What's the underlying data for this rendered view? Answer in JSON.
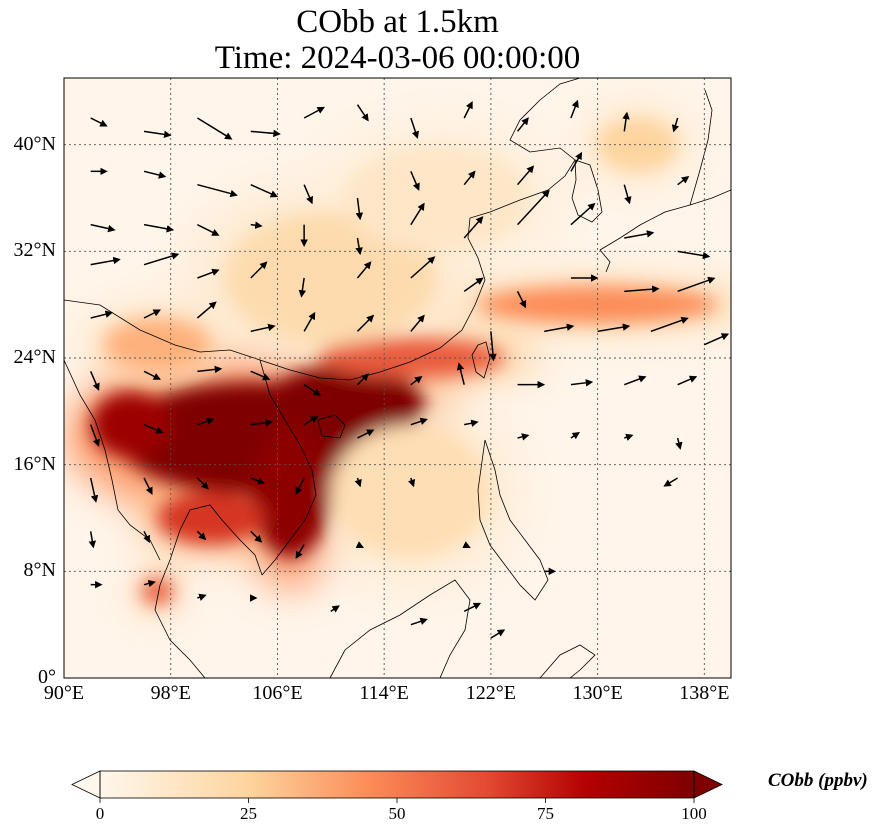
{
  "map": {
    "title_line1": "CObb at 1.5km",
    "title_line2": "Time: 2024-03-06 00:00:00",
    "lon_range": [
      90,
      140
    ],
    "lat_range": [
      0,
      45
    ],
    "lat_ticks": [
      {
        "value": 0,
        "label": "0°"
      },
      {
        "value": 8,
        "label": "8°N"
      },
      {
        "value": 16,
        "label": "16°N"
      },
      {
        "value": 24,
        "label": "24°N"
      },
      {
        "value": 32,
        "label": "32°N"
      },
      {
        "value": 40,
        "label": "40°N"
      }
    ],
    "lon_ticks": [
      {
        "value": 90,
        "label": "90°E"
      },
      {
        "value": 98,
        "label": "98°E"
      },
      {
        "value": 106,
        "label": "106°E"
      },
      {
        "value": 114,
        "label": "114°E"
      },
      {
        "value": 122,
        "label": "122°E"
      },
      {
        "value": 130,
        "label": "130°E"
      },
      {
        "value": 138,
        "label": "138°E"
      }
    ],
    "gridlines": true,
    "colormap": "OrRd",
    "colors": {
      "low": "#fff7ec",
      "mid": "#fdbb84",
      "high": "#7f0000"
    }
  },
  "colorbar": {
    "label": "CObb (ppbv)",
    "min": 0,
    "max": 100,
    "extend": "both",
    "ticks": [
      {
        "value": 0,
        "label": "0"
      },
      {
        "value": 25,
        "label": "25"
      },
      {
        "value": 50,
        "label": "50"
      },
      {
        "value": 75,
        "label": "75"
      },
      {
        "value": 100,
        "label": "100"
      }
    ]
  },
  "plumes": [
    {
      "name": "indochina-core",
      "value": 100,
      "lon": 104,
      "lat": 18,
      "rlon": 10,
      "rlat": 4.2
    },
    {
      "name": "south-china-core",
      "value": 100,
      "lon": 111,
      "lat": 20.5,
      "rlon": 6,
      "rlat": 3
    },
    {
      "name": "vietnam-core",
      "value": 95,
      "lon": 107,
      "lat": 14,
      "rlon": 3,
      "rlat": 5
    },
    {
      "name": "myanmar-patch",
      "value": 90,
      "lon": 95,
      "lat": 19,
      "rlon": 3,
      "rlat": 2.5
    },
    {
      "name": "thailand-band",
      "value": 70,
      "lon": 101,
      "lat": 12,
      "rlon": 4,
      "rlat": 2
    },
    {
      "name": "china-coast-band",
      "value": 60,
      "lon": 116,
      "lat": 24,
      "rlon": 7,
      "rlat": 1.5
    },
    {
      "name": "taiwan-stream",
      "value": 45,
      "lon": 130,
      "lat": 28,
      "rlon": 9,
      "rlat": 1.4
    },
    {
      "name": "yunnan-haze",
      "value": 35,
      "lon": 97,
      "lat": 25,
      "rlon": 4,
      "rlat": 2
    },
    {
      "name": "central-china-haze",
      "value": 20,
      "lon": 110,
      "lat": 30,
      "rlon": 8,
      "rlat": 5
    },
    {
      "name": "northern-haze",
      "value": 12,
      "lon": 118,
      "lat": 36,
      "rlon": 7,
      "rlat": 4
    },
    {
      "name": "scs-haze",
      "value": 18,
      "lon": 116,
      "lat": 14,
      "rlon": 6,
      "rlat": 5
    },
    {
      "name": "malay-patch",
      "value": 60,
      "lon": 97,
      "lat": 6.5,
      "rlon": 1.2,
      "rlat": 1
    },
    {
      "name": "japan-streak",
      "value": 25,
      "lon": 133,
      "lat": 40,
      "rlon": 3,
      "rlat": 2
    }
  ],
  "wind_vectors": [
    {
      "lon": 92,
      "lat": 42,
      "u": 1.2,
      "v": -0.6
    },
    {
      "lon": 96,
      "lat": 41,
      "u": 2.0,
      "v": -0.3
    },
    {
      "lon": 100,
      "lat": 42,
      "u": 2.6,
      "v": -1.6
    },
    {
      "lon": 104,
      "lat": 41,
      "u": 2.2,
      "v": -0.2
    },
    {
      "lon": 108,
      "lat": 42,
      "u": 1.5,
      "v": 0.8
    },
    {
      "lon": 112,
      "lat": 43,
      "u": 0.8,
      "v": -1.2
    },
    {
      "lon": 116,
      "lat": 42,
      "u": 0.5,
      "v": -1.5
    },
    {
      "lon": 120,
      "lat": 42,
      "u": 0.6,
      "v": 1.2
    },
    {
      "lon": 124,
      "lat": 41,
      "u": 0.8,
      "v": 1.0
    },
    {
      "lon": 128,
      "lat": 42,
      "u": 0.5,
      "v": 1.3
    },
    {
      "lon": 132,
      "lat": 41,
      "u": 0.2,
      "v": 1.4
    },
    {
      "lon": 136,
      "lat": 42,
      "u": -0.3,
      "v": -1.0
    },
    {
      "lon": 92,
      "lat": 38,
      "u": 1.2,
      "v": 0.0
    },
    {
      "lon": 96,
      "lat": 38,
      "u": 1.6,
      "v": -0.4
    },
    {
      "lon": 100,
      "lat": 37,
      "u": 3.0,
      "v": -0.8
    },
    {
      "lon": 104,
      "lat": 37,
      "u": 2.0,
      "v": -0.9
    },
    {
      "lon": 108,
      "lat": 37,
      "u": 0.6,
      "v": -1.4
    },
    {
      "lon": 112,
      "lat": 36,
      "u": 0.2,
      "v": -1.6
    },
    {
      "lon": 116,
      "lat": 38,
      "u": 0.6,
      "v": -1.4
    },
    {
      "lon": 120,
      "lat": 37,
      "u": 0.8,
      "v": 1.0
    },
    {
      "lon": 124,
      "lat": 37,
      "u": 1.2,
      "v": 1.4
    },
    {
      "lon": 128,
      "lat": 38,
      "u": 0.8,
      "v": 1.4
    },
    {
      "lon": 132,
      "lat": 37,
      "u": 0.4,
      "v": -1.4
    },
    {
      "lon": 136,
      "lat": 37,
      "u": 0.8,
      "v": 0.6
    },
    {
      "lon": 92,
      "lat": 34,
      "u": 1.8,
      "v": -0.4
    },
    {
      "lon": 96,
      "lat": 34,
      "u": 2.2,
      "v": -0.4
    },
    {
      "lon": 100,
      "lat": 34,
      "u": 1.6,
      "v": -0.8
    },
    {
      "lon": 104,
      "lat": 34,
      "u": 0.8,
      "v": -0.1
    },
    {
      "lon": 108,
      "lat": 34,
      "u": 0.0,
      "v": -1.6
    },
    {
      "lon": 112,
      "lat": 33,
      "u": 0.2,
      "v": -1.2
    },
    {
      "lon": 116,
      "lat": 34,
      "u": 1.0,
      "v": 1.6
    },
    {
      "lon": 120,
      "lat": 33,
      "u": 1.4,
      "v": 1.6
    },
    {
      "lon": 124,
      "lat": 34,
      "u": 2.4,
      "v": 2.6
    },
    {
      "lon": 128,
      "lat": 34,
      "u": 1.8,
      "v": 1.6
    },
    {
      "lon": 132,
      "lat": 33,
      "u": 2.2,
      "v": 0.4
    },
    {
      "lon": 136,
      "lat": 32,
      "u": 2.4,
      "v": -0.4
    },
    {
      "lon": 92,
      "lat": 31,
      "u": 2.2,
      "v": 0.4
    },
    {
      "lon": 96,
      "lat": 31,
      "u": 2.6,
      "v": 0.8
    },
    {
      "lon": 100,
      "lat": 30,
      "u": 1.6,
      "v": 0.6
    },
    {
      "lon": 104,
      "lat": 30,
      "u": 1.2,
      "v": 1.2
    },
    {
      "lon": 108,
      "lat": 30,
      "u": -0.2,
      "v": -1.4
    },
    {
      "lon": 112,
      "lat": 30,
      "u": 1.0,
      "v": 1.2
    },
    {
      "lon": 116,
      "lat": 30,
      "u": 1.8,
      "v": 1.6
    },
    {
      "lon": 120,
      "lat": 29,
      "u": 1.4,
      "v": 1.0
    },
    {
      "lon": 124,
      "lat": 29,
      "u": 0.6,
      "v": -1.2
    },
    {
      "lon": 128,
      "lat": 30,
      "u": 2.0,
      "v": 0.0
    },
    {
      "lon": 132,
      "lat": 29,
      "u": 2.6,
      "v": 0.2
    },
    {
      "lon": 136,
      "lat": 29,
      "u": 2.8,
      "v": 1.0
    },
    {
      "lon": 92,
      "lat": 27,
      "u": 1.6,
      "v": 0.4
    },
    {
      "lon": 96,
      "lat": 27,
      "u": 1.2,
      "v": 0.6
    },
    {
      "lon": 100,
      "lat": 27,
      "u": 1.4,
      "v": 1.2
    },
    {
      "lon": 104,
      "lat": 26,
      "u": 1.8,
      "v": 0.4
    },
    {
      "lon": 108,
      "lat": 26,
      "u": 0.8,
      "v": 1.4
    },
    {
      "lon": 112,
      "lat": 26,
      "u": 1.2,
      "v": 1.2
    },
    {
      "lon": 116,
      "lat": 26,
      "u": 1.0,
      "v": 1.2
    },
    {
      "lon": 122,
      "lat": 26,
      "u": 0.2,
      "v": -2.2
    },
    {
      "lon": 126,
      "lat": 26,
      "u": 2.2,
      "v": 0.4
    },
    {
      "lon": 130,
      "lat": 26,
      "u": 2.4,
      "v": 0.4
    },
    {
      "lon": 134,
      "lat": 26,
      "u": 2.8,
      "v": 1.0
    },
    {
      "lon": 138,
      "lat": 25,
      "u": 1.8,
      "v": 0.8
    },
    {
      "lon": 92,
      "lat": 23,
      "u": 0.6,
      "v": -1.4
    },
    {
      "lon": 96,
      "lat": 23,
      "u": 1.2,
      "v": -0.6
    },
    {
      "lon": 100,
      "lat": 23,
      "u": 1.8,
      "v": 0.2
    },
    {
      "lon": 104,
      "lat": 23,
      "u": 1.4,
      "v": -0.6
    },
    {
      "lon": 108,
      "lat": 22,
      "u": 1.2,
      "v": -0.8
    },
    {
      "lon": 112,
      "lat": 22,
      "u": 0.8,
      "v": 0.8
    },
    {
      "lon": 116,
      "lat": 22,
      "u": 0.8,
      "v": 0.6
    },
    {
      "lon": 120,
      "lat": 22,
      "u": -0.4,
      "v": 1.6
    },
    {
      "lon": 124,
      "lat": 22,
      "u": 2.0,
      "v": 0.0
    },
    {
      "lon": 128,
      "lat": 22,
      "u": 1.6,
      "v": 0.2
    },
    {
      "lon": 132,
      "lat": 22,
      "u": 1.6,
      "v": 0.6
    },
    {
      "lon": 136,
      "lat": 22,
      "u": 1.4,
      "v": 0.6
    },
    {
      "lon": 92,
      "lat": 19,
      "u": 0.6,
      "v": -1.6
    },
    {
      "lon": 96,
      "lat": 19,
      "u": 1.4,
      "v": -0.6
    },
    {
      "lon": 100,
      "lat": 19,
      "u": 1.2,
      "v": 0.4
    },
    {
      "lon": 104,
      "lat": 19,
      "u": 1.6,
      "v": 0.2
    },
    {
      "lon": 108,
      "lat": 19,
      "u": 1.0,
      "v": 0.6
    },
    {
      "lon": 112,
      "lat": 18,
      "u": 1.2,
      "v": 0.6
    },
    {
      "lon": 116,
      "lat": 19,
      "u": 1.2,
      "v": 0.4
    },
    {
      "lon": 120,
      "lat": 19,
      "u": 1.0,
      "v": 0.2
    },
    {
      "lon": 124,
      "lat": 18,
      "u": 0.8,
      "v": 0.2
    },
    {
      "lon": 128,
      "lat": 18,
      "u": 0.6,
      "v": 0.4
    },
    {
      "lon": 132,
      "lat": 18,
      "u": 0.6,
      "v": 0.2
    },
    {
      "lon": 136,
      "lat": 18,
      "u": 0.2,
      "v": -0.8
    },
    {
      "lon": 92,
      "lat": 15,
      "u": 0.4,
      "v": -1.8
    },
    {
      "lon": 96,
      "lat": 15,
      "u": 0.6,
      "v": -1.2
    },
    {
      "lon": 100,
      "lat": 15,
      "u": 0.8,
      "v": -0.8
    },
    {
      "lon": 104,
      "lat": 15,
      "u": 1.0,
      "v": -0.4
    },
    {
      "lon": 108,
      "lat": 15,
      "u": -0.6,
      "v": -1.2
    },
    {
      "lon": 112,
      "lat": 15,
      "u": 0.2,
      "v": -0.6
    },
    {
      "lon": 116,
      "lat": 15,
      "u": 0.2,
      "v": -0.6
    },
    {
      "lon": 136,
      "lat": 15,
      "u": -1.0,
      "v": -0.6
    },
    {
      "lon": 92,
      "lat": 11,
      "u": 0.2,
      "v": -1.2
    },
    {
      "lon": 96,
      "lat": 11,
      "u": 0.4,
      "v": -0.8
    },
    {
      "lon": 100,
      "lat": 11,
      "u": 0.6,
      "v": -0.6
    },
    {
      "lon": 104,
      "lat": 11,
      "u": 0.8,
      "v": -0.8
    },
    {
      "lon": 108,
      "lat": 10,
      "u": -0.6,
      "v": -1.0
    },
    {
      "lon": 112,
      "lat": 10,
      "u": 0.4,
      "v": -0.2
    },
    {
      "lon": 120,
      "lat": 10,
      "u": 0.4,
      "v": -0.2
    },
    {
      "lon": 126,
      "lat": 8,
      "u": 0.8,
      "v": 0.0
    },
    {
      "lon": 92,
      "lat": 7,
      "u": 0.8,
      "v": 0.0
    },
    {
      "lon": 96,
      "lat": 7,
      "u": 0.8,
      "v": 0.2
    },
    {
      "lon": 100,
      "lat": 6,
      "u": 0.6,
      "v": 0.2
    },
    {
      "lon": 104,
      "lat": 6,
      "u": 0.4,
      "v": 0.0
    },
    {
      "lon": 110,
      "lat": 5,
      "u": 0.6,
      "v": 0.4
    },
    {
      "lon": 116,
      "lat": 4,
      "u": 1.2,
      "v": 0.4
    },
    {
      "lon": 120,
      "lat": 5,
      "u": 1.2,
      "v": 0.6
    },
    {
      "lon": 122,
      "lat": 3,
      "u": 1.0,
      "v": 0.6
    }
  ]
}
